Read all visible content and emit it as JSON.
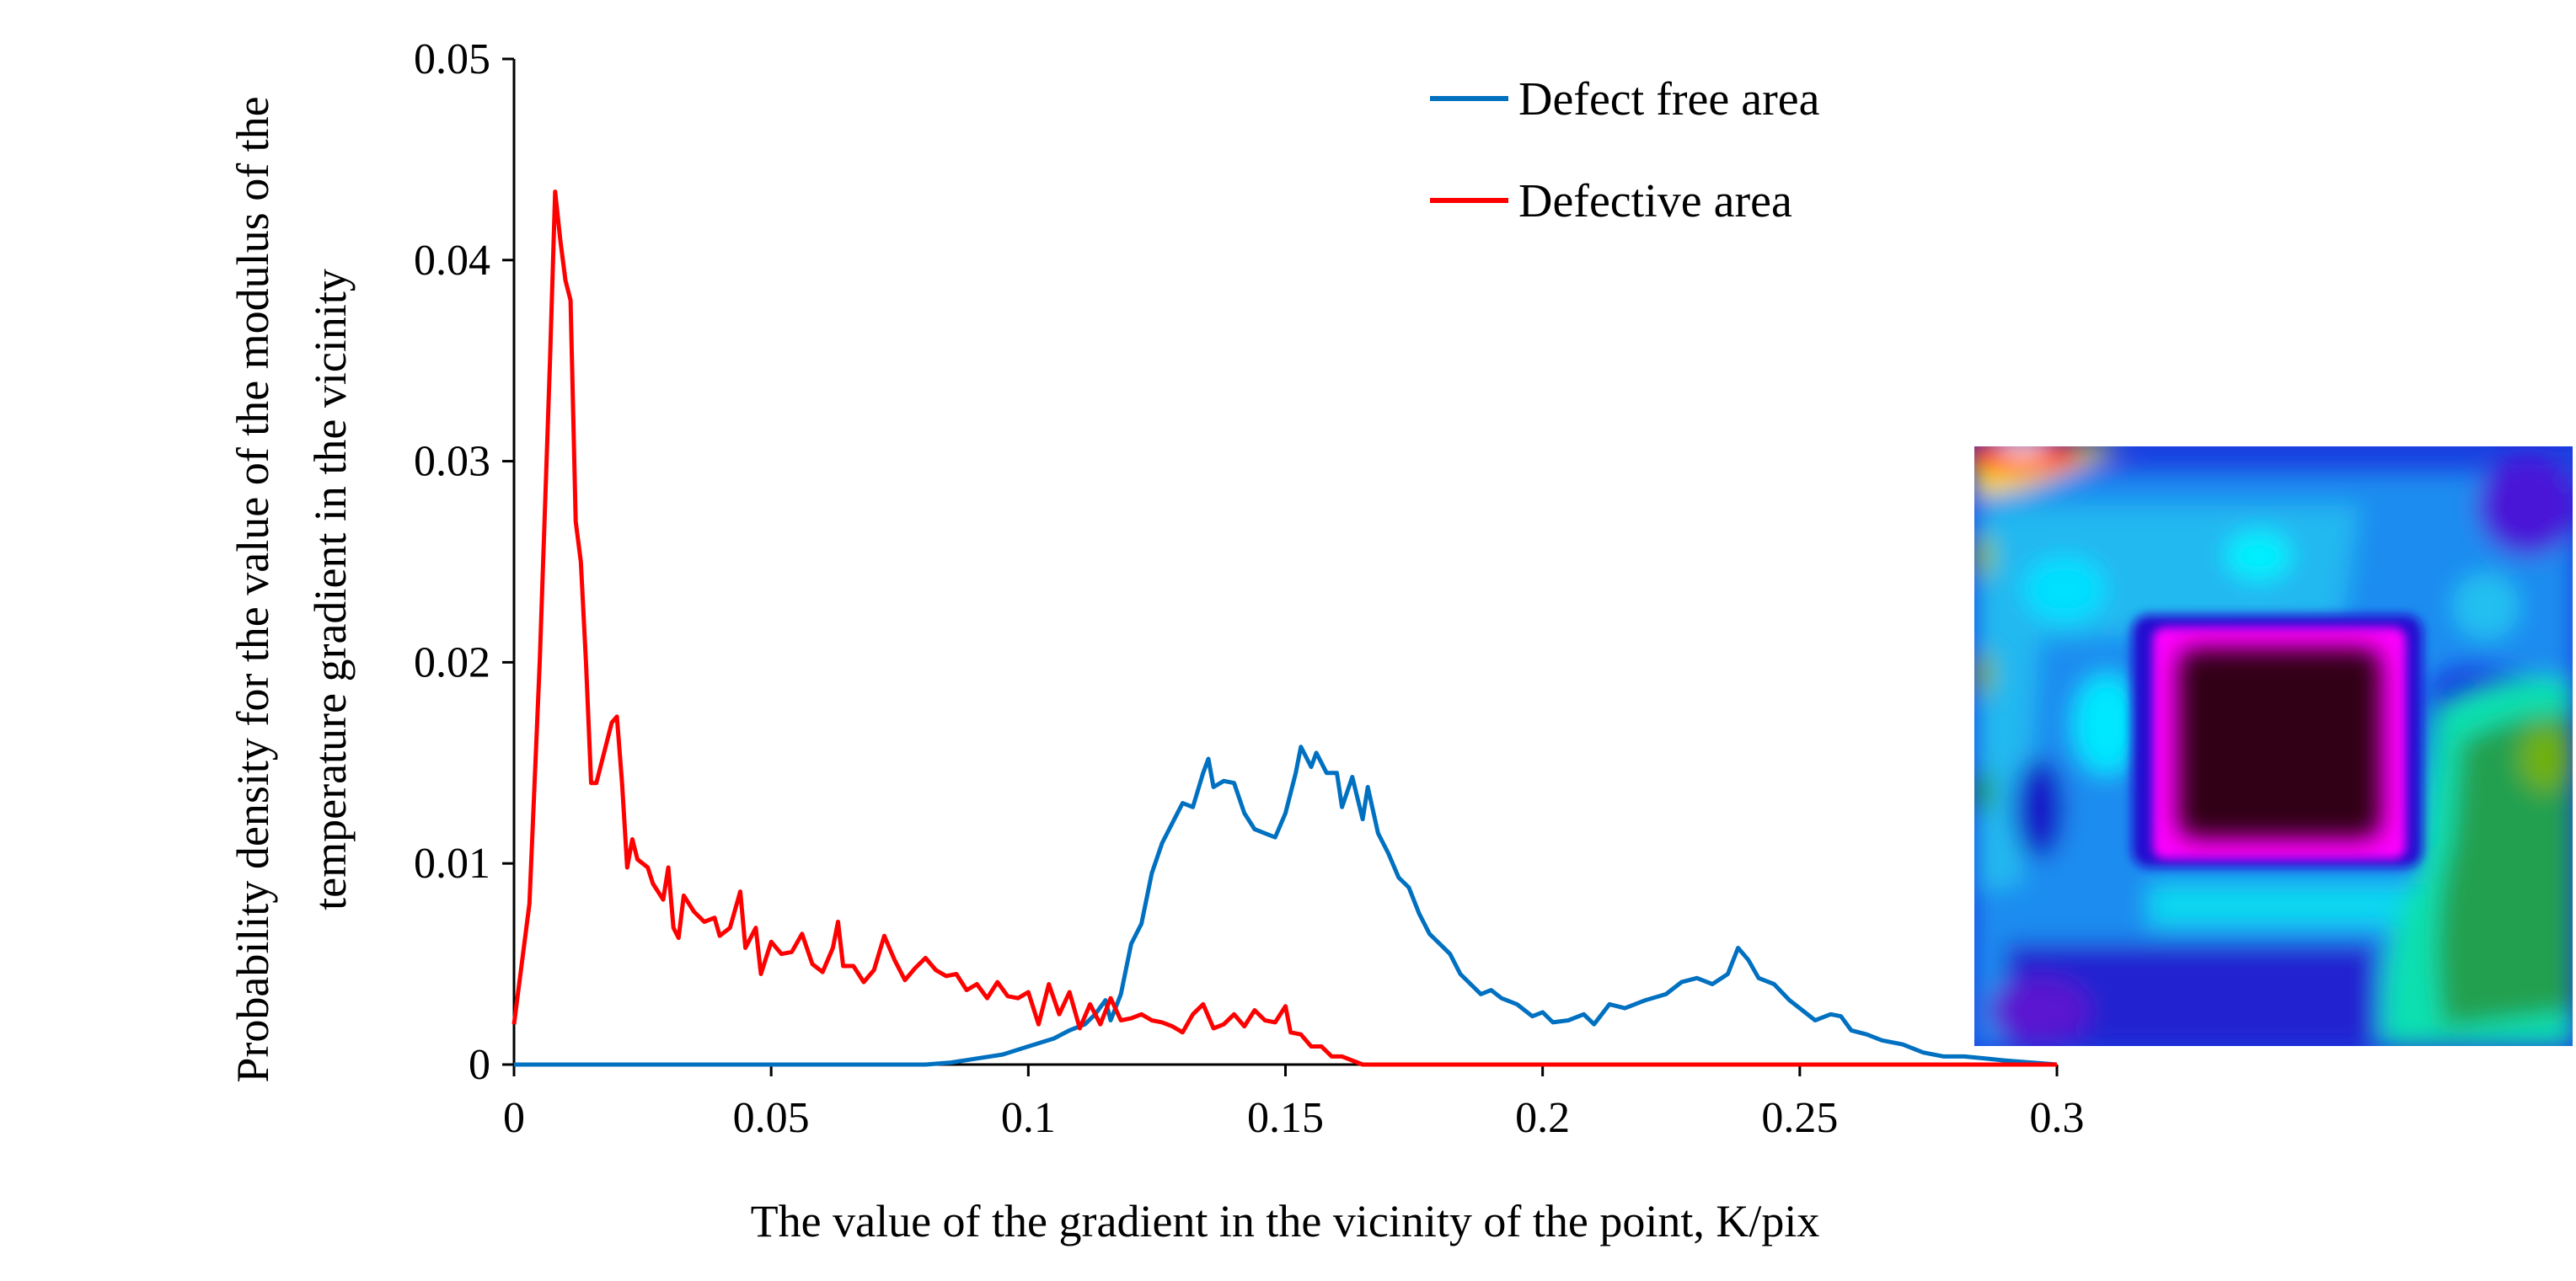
{
  "chart_data": {
    "type": "line",
    "title": "",
    "xlabel": "The value of the gradient in the vicinity of the point, K/pix",
    "ylabel_lines": [
      "Probability density for the value of the modulus of the",
      "temperature gradient in the vicinity"
    ],
    "xlim": [
      0,
      0.3
    ],
    "ylim": [
      0,
      0.05
    ],
    "x_ticks": [
      "0",
      "0.05",
      "0.1",
      "0.15",
      "0.2",
      "0.25",
      "0.3"
    ],
    "y_ticks": [
      "0",
      "0.01",
      "0.02",
      "0.03",
      "0.04",
      "0.05"
    ],
    "grid": false,
    "legend_position": "top-right",
    "series": [
      {
        "name": "Defect free area",
        "color": "#0070C0",
        "points": [
          [
            0,
            0
          ],
          [
            0.08,
            0
          ],
          [
            0.085,
            0.0001
          ],
          [
            0.09,
            0.0003
          ],
          [
            0.095,
            0.0005
          ],
          [
            0.1,
            0.0009
          ],
          [
            0.105,
            0.0013
          ],
          [
            0.108,
            0.0017
          ],
          [
            0.111,
            0.002
          ],
          [
            0.113,
            0.0025
          ],
          [
            0.115,
            0.0032
          ],
          [
            0.116,
            0.0022
          ],
          [
            0.118,
            0.0035
          ],
          [
            0.12,
            0.006
          ],
          [
            0.122,
            0.007
          ],
          [
            0.124,
            0.0095
          ],
          [
            0.126,
            0.011
          ],
          [
            0.128,
            0.012
          ],
          [
            0.13,
            0.013
          ],
          [
            0.132,
            0.0128
          ],
          [
            0.134,
            0.0145
          ],
          [
            0.135,
            0.0152
          ],
          [
            0.136,
            0.0138
          ],
          [
            0.138,
            0.0141
          ],
          [
            0.14,
            0.014
          ],
          [
            0.142,
            0.0125
          ],
          [
            0.144,
            0.0117
          ],
          [
            0.146,
            0.0115
          ],
          [
            0.148,
            0.0113
          ],
          [
            0.15,
            0.0125
          ],
          [
            0.152,
            0.0145
          ],
          [
            0.153,
            0.0158
          ],
          [
            0.155,
            0.0148
          ],
          [
            0.156,
            0.0155
          ],
          [
            0.158,
            0.0145
          ],
          [
            0.16,
            0.0145
          ],
          [
            0.161,
            0.0128
          ],
          [
            0.163,
            0.0143
          ],
          [
            0.165,
            0.0122
          ],
          [
            0.166,
            0.0138
          ],
          [
            0.168,
            0.0115
          ],
          [
            0.17,
            0.0105
          ],
          [
            0.172,
            0.0093
          ],
          [
            0.174,
            0.0088
          ],
          [
            0.176,
            0.0075
          ],
          [
            0.178,
            0.0065
          ],
          [
            0.18,
            0.006
          ],
          [
            0.182,
            0.0055
          ],
          [
            0.184,
            0.0045
          ],
          [
            0.186,
            0.004
          ],
          [
            0.188,
            0.0035
          ],
          [
            0.19,
            0.0037
          ],
          [
            0.192,
            0.0033
          ],
          [
            0.195,
            0.003
          ],
          [
            0.198,
            0.0024
          ],
          [
            0.2,
            0.0026
          ],
          [
            0.202,
            0.0021
          ],
          [
            0.205,
            0.0022
          ],
          [
            0.208,
            0.0025
          ],
          [
            0.21,
            0.002
          ],
          [
            0.213,
            0.003
          ],
          [
            0.216,
            0.0028
          ],
          [
            0.22,
            0.0032
          ],
          [
            0.224,
            0.0035
          ],
          [
            0.227,
            0.0041
          ],
          [
            0.23,
            0.0043
          ],
          [
            0.233,
            0.004
          ],
          [
            0.236,
            0.0045
          ],
          [
            0.238,
            0.0058
          ],
          [
            0.24,
            0.0052
          ],
          [
            0.242,
            0.0043
          ],
          [
            0.245,
            0.004
          ],
          [
            0.248,
            0.0032
          ],
          [
            0.25,
            0.0028
          ],
          [
            0.253,
            0.0022
          ],
          [
            0.256,
            0.0025
          ],
          [
            0.258,
            0.0024
          ],
          [
            0.26,
            0.0017
          ],
          [
            0.263,
            0.0015
          ],
          [
            0.266,
            0.0012
          ],
          [
            0.27,
            0.001
          ],
          [
            0.274,
            0.0006
          ],
          [
            0.278,
            0.0004
          ],
          [
            0.282,
            0.0004
          ],
          [
            0.286,
            0.0003
          ],
          [
            0.29,
            0.0002
          ],
          [
            0.295,
            0.0001
          ],
          [
            0.3,
            0
          ]
        ]
      },
      {
        "name": "Defective area",
        "color": "#FF0000",
        "points": [
          [
            0,
            0.002
          ],
          [
            0.003,
            0.008
          ],
          [
            0.005,
            0.02
          ],
          [
            0.007,
            0.035
          ],
          [
            0.008,
            0.0434
          ],
          [
            0.009,
            0.041
          ],
          [
            0.01,
            0.039
          ],
          [
            0.011,
            0.038
          ],
          [
            0.012,
            0.027
          ],
          [
            0.013,
            0.025
          ],
          [
            0.014,
            0.02
          ],
          [
            0.015,
            0.014
          ],
          [
            0.016,
            0.014
          ],
          [
            0.018,
            0.016
          ],
          [
            0.019,
            0.017
          ],
          [
            0.02,
            0.0173
          ],
          [
            0.021,
            0.014
          ],
          [
            0.022,
            0.0098
          ],
          [
            0.023,
            0.0112
          ],
          [
            0.024,
            0.0102
          ],
          [
            0.026,
            0.0098
          ],
          [
            0.027,
            0.009
          ],
          [
            0.029,
            0.0082
          ],
          [
            0.03,
            0.0098
          ],
          [
            0.031,
            0.0068
          ],
          [
            0.032,
            0.0063
          ],
          [
            0.033,
            0.0084
          ],
          [
            0.035,
            0.0076
          ],
          [
            0.037,
            0.0071
          ],
          [
            0.039,
            0.0073
          ],
          [
            0.04,
            0.0064
          ],
          [
            0.042,
            0.0068
          ],
          [
            0.044,
            0.0086
          ],
          [
            0.045,
            0.0058
          ],
          [
            0.047,
            0.0068
          ],
          [
            0.048,
            0.0045
          ],
          [
            0.05,
            0.0061
          ],
          [
            0.052,
            0.0055
          ],
          [
            0.054,
            0.0056
          ],
          [
            0.056,
            0.0065
          ],
          [
            0.058,
            0.005
          ],
          [
            0.06,
            0.0046
          ],
          [
            0.062,
            0.0058
          ],
          [
            0.063,
            0.0071
          ],
          [
            0.064,
            0.0049
          ],
          [
            0.066,
            0.0049
          ],
          [
            0.068,
            0.0041
          ],
          [
            0.07,
            0.0047
          ],
          [
            0.072,
            0.0064
          ],
          [
            0.074,
            0.0052
          ],
          [
            0.076,
            0.0042
          ],
          [
            0.078,
            0.0048
          ],
          [
            0.08,
            0.0053
          ],
          [
            0.082,
            0.0047
          ],
          [
            0.084,
            0.0044
          ],
          [
            0.086,
            0.0045
          ],
          [
            0.088,
            0.0037
          ],
          [
            0.09,
            0.004
          ],
          [
            0.092,
            0.0033
          ],
          [
            0.094,
            0.0041
          ],
          [
            0.096,
            0.0034
          ],
          [
            0.098,
            0.0033
          ],
          [
            0.1,
            0.0036
          ],
          [
            0.102,
            0.002
          ],
          [
            0.104,
            0.004
          ],
          [
            0.106,
            0.0025
          ],
          [
            0.108,
            0.0036
          ],
          [
            0.11,
            0.0018
          ],
          [
            0.112,
            0.003
          ],
          [
            0.114,
            0.002
          ],
          [
            0.116,
            0.0033
          ],
          [
            0.118,
            0.0022
          ],
          [
            0.12,
            0.0023
          ],
          [
            0.122,
            0.0025
          ],
          [
            0.124,
            0.0022
          ],
          [
            0.126,
            0.0021
          ],
          [
            0.128,
            0.0019
          ],
          [
            0.13,
            0.0016
          ],
          [
            0.132,
            0.0025
          ],
          [
            0.134,
            0.003
          ],
          [
            0.136,
            0.0018
          ],
          [
            0.138,
            0.002
          ],
          [
            0.14,
            0.0025
          ],
          [
            0.142,
            0.0019
          ],
          [
            0.144,
            0.0027
          ],
          [
            0.146,
            0.0022
          ],
          [
            0.148,
            0.0021
          ],
          [
            0.15,
            0.0029
          ],
          [
            0.151,
            0.0016
          ],
          [
            0.153,
            0.0015
          ],
          [
            0.155,
            0.0009
          ],
          [
            0.157,
            0.0009
          ],
          [
            0.159,
            0.0004
          ],
          [
            0.161,
            0.0004
          ],
          [
            0.163,
            0.0002
          ],
          [
            0.165,
            0
          ],
          [
            0.3,
            0
          ]
        ]
      }
    ]
  },
  "inset": {
    "description_colors": [
      "#1010d0",
      "#00e0ff",
      "#ff00ff",
      "#200010",
      "#20a040",
      "#ff2020"
    ]
  }
}
